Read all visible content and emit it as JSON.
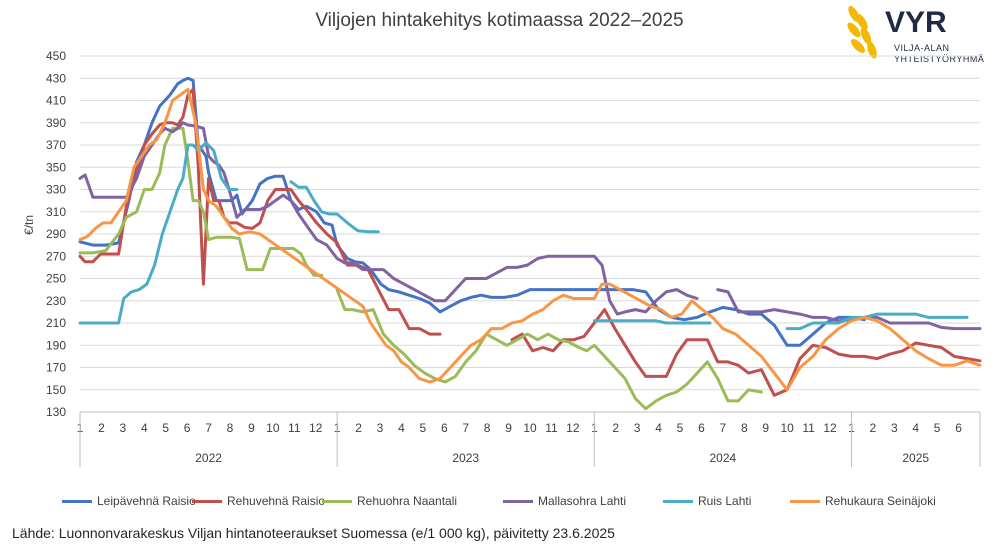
{
  "title": "Viljojen hintakehitys kotimaassa 2022–2025",
  "logo": {
    "name": "VYR",
    "subtitle_line1": "VILJA-ALAN",
    "subtitle_line2": "YHTEISTYÖRYHMÄ"
  },
  "source": "Lähde: Luonnonvarakeskus Viljan hintanoteeraukset Suomessa (e/1 000 kg), päivitetty 23.6.2025",
  "chart_data": {
    "type": "line",
    "title": "Viljojen hintakehitys kotimaassa 2022–2025",
    "ylabel": "€/tn",
    "xlabel": "",
    "ylim": [
      130,
      450
    ],
    "yticks": [
      130,
      150,
      170,
      190,
      210,
      230,
      250,
      270,
      290,
      310,
      330,
      350,
      370,
      390,
      410,
      430,
      450
    ],
    "xlim": [
      2022.0,
      2025.5
    ],
    "years": [
      "2022",
      "2023",
      "2024",
      "2025"
    ],
    "month_ticks": [
      "1",
      "2",
      "3",
      "4",
      "5",
      "6",
      "7",
      "8",
      "9",
      "10",
      "11",
      "12",
      "1",
      "2",
      "3",
      "4",
      "5",
      "6",
      "7",
      "8",
      "9",
      "10",
      "11",
      "12",
      "1",
      "2",
      "3",
      "4",
      "5",
      "6",
      "7",
      "8",
      "9",
      "10",
      "11",
      "12",
      "1",
      "2",
      "3",
      "4",
      "5",
      "6"
    ],
    "grid": "horizontal",
    "legend_position": "bottom",
    "series": [
      {
        "name": "Leipävehnä Raisio",
        "color": "#4472C4",
        "x": [
          2022.0,
          2022.05,
          2022.1,
          2022.15,
          2022.19,
          2022.22,
          2022.25,
          2022.28,
          2022.31,
          2022.33,
          2022.35,
          2022.38,
          2022.4,
          2022.42,
          2022.44,
          2022.46,
          2022.49,
          2022.5,
          2022.53,
          2022.56,
          2022.59,
          2022.61,
          2022.63,
          2022.67,
          2022.7,
          2022.73,
          2022.76,
          2022.79,
          2022.82,
          2022.85,
          2022.88,
          2022.92,
          2022.95,
          2022.98,
          2023.0,
          2023.04,
          2023.07,
          2023.1,
          2023.13,
          2023.17,
          2023.2,
          2023.24,
          2023.28,
          2023.32,
          2023.36,
          2023.4,
          2023.44,
          2023.48,
          2023.52,
          2023.56,
          2023.6,
          2023.65,
          2023.7,
          2023.75,
          2023.8,
          2023.85,
          2023.9,
          2023.95,
          2024.0,
          2024.05,
          2024.1,
          2024.15,
          2024.2,
          2024.25,
          2024.3,
          2024.35,
          2024.4,
          2024.45,
          2024.5,
          2024.55,
          2024.6,
          2024.65,
          2024.7,
          2024.75,
          2024.8,
          2024.85,
          2024.9,
          2024.95,
          2025.0,
          2025.05
        ],
        "y": [
          283,
          280,
          280,
          282,
          320,
          355,
          370,
          390,
          405,
          410,
          415,
          425,
          428,
          430,
          428,
          370,
          360,
          345,
          320,
          320,
          320,
          325,
          308,
          320,
          335,
          340,
          342,
          342,
          320,
          312,
          315,
          310,
          300,
          298,
          280,
          268,
          265,
          264,
          258,
          245,
          240,
          238,
          235,
          232,
          228,
          220,
          225,
          230,
          233,
          235,
          233,
          233,
          235,
          240,
          240,
          240,
          240,
          240,
          240,
          240,
          240,
          240,
          238,
          222,
          215,
          213,
          215,
          220,
          224,
          222,
          218,
          218,
          208,
          190,
          190,
          200,
          210,
          215,
          215,
          213
        ]
      },
      {
        "name": "Rehuvehnä Raisio",
        "color": "#C0504D",
        "x": [
          2022.0,
          2022.02,
          2022.05,
          2022.08,
          2022.12,
          2022.15,
          2022.18,
          2022.22,
          2022.25,
          2022.28,
          2022.31,
          2022.33,
          2022.36,
          2022.38,
          2022.4,
          2022.42,
          2022.44,
          2022.46,
          2022.48,
          2022.5,
          2022.52,
          2022.54,
          2022.56,
          2022.58,
          2022.61,
          2022.64,
          2022.67,
          2022.7,
          2022.73,
          2022.76,
          2022.79,
          2022.82,
          2022.85,
          2022.88,
          2022.92,
          2022.96,
          2023.0,
          2023.04,
          2023.08,
          2023.12,
          2023.16,
          2023.2,
          2023.24,
          2023.28,
          2023.32,
          2023.36,
          2023.4,
          2023.44,
          2023.48,
          2023.52,
          2023.56,
          2023.6,
          2023.64,
          2023.68,
          2023.72,
          2023.76,
          2023.8,
          2023.84,
          2023.88,
          2023.92,
          2023.96,
          2024.0,
          2024.04,
          2024.08,
          2024.12,
          2024.16,
          2024.2,
          2024.24,
          2024.28,
          2024.32,
          2024.36,
          2024.4,
          2024.44,
          2024.48,
          2024.52,
          2024.56,
          2024.6,
          2024.65,
          2024.7,
          2024.75,
          2024.8,
          2024.85,
          2024.9,
          2024.95,
          2025.0,
          2025.05,
          2025.1,
          2025.15,
          2025.2,
          2025.25,
          2025.3,
          2025.35,
          2025.4,
          2025.45,
          2025.5
        ],
        "y": [
          270,
          265,
          265,
          272,
          272,
          272,
          315,
          345,
          370,
          380,
          388,
          390,
          390,
          388,
          395,
          415,
          420,
          350,
          245,
          340,
          320,
          320,
          305,
          300,
          300,
          296,
          295,
          300,
          320,
          330,
          330,
          330,
          320,
          312,
          300,
          290,
          282,
          262,
          262,
          258,
          240,
          222,
          222,
          205,
          205,
          200,
          200,
          null,
          null,
          null,
          null,
          null,
          null,
          195,
          200,
          185,
          188,
          185,
          195,
          195,
          198,
          210,
          222,
          205,
          190,
          175,
          162,
          162,
          162,
          182,
          195,
          195,
          195,
          175,
          175,
          172,
          165,
          168,
          145,
          150,
          178,
          190,
          188,
          182,
          180,
          180,
          178,
          182,
          185,
          192,
          190,
          188,
          180,
          178,
          176
        ]
      },
      {
        "name": "Rehuohra Naantali",
        "color": "#9BBB59",
        "x": [
          2022.0,
          2022.05,
          2022.1,
          2022.15,
          2022.18,
          2022.22,
          2022.25,
          2022.28,
          2022.31,
          2022.33,
          2022.36,
          2022.38,
          2022.4,
          2022.42,
          2022.44,
          2022.46,
          2022.48,
          2022.5,
          2022.53,
          2022.56,
          2022.59,
          2022.62,
          2022.65,
          2022.68,
          2022.71,
          2022.74,
          2022.77,
          2022.8,
          2022.83,
          2022.86,
          2022.88,
          2022.91,
          2022.94,
          2022.97,
          2023.0,
          2023.03,
          2023.06,
          2023.1,
          2023.14,
          2023.18,
          2023.22,
          2023.26,
          2023.3,
          2023.34,
          2023.38,
          2023.42,
          2023.46,
          2023.5,
          2023.54,
          2023.58,
          2023.62,
          2023.66,
          2023.7,
          2023.74,
          2023.78,
          2023.82,
          2023.86,
          2023.9,
          2023.94,
          2023.97,
          2024.0,
          2024.04,
          2024.08,
          2024.12,
          2024.16,
          2024.2,
          2024.24,
          2024.28,
          2024.32,
          2024.36,
          2024.4,
          2024.44,
          2024.48,
          2024.52,
          2024.56,
          2024.6,
          2024.65
        ],
        "y": [
          273,
          273,
          275,
          290,
          305,
          310,
          330,
          330,
          345,
          370,
          385,
          385,
          385,
          355,
          320,
          320,
          310,
          285,
          287,
          287,
          287,
          286,
          258,
          258,
          258,
          277,
          277,
          277,
          277,
          272,
          262,
          253,
          253,
          null,
          240,
          222,
          222,
          220,
          222,
          200,
          190,
          182,
          172,
          165,
          160,
          157,
          162,
          175,
          185,
          200,
          195,
          190,
          195,
          200,
          195,
          200,
          195,
          193,
          188,
          185,
          190,
          180,
          170,
          160,
          142,
          133,
          140,
          145,
          148,
          155,
          165,
          175,
          160,
          140,
          140,
          150,
          148
        ]
      },
      {
        "name": "Mallasohra Lahti",
        "color": "#8064A2",
        "x": [
          2022.0,
          2022.02,
          2022.05,
          2022.1,
          2022.15,
          2022.18,
          2022.22,
          2022.25,
          2022.28,
          2022.31,
          2022.33,
          2022.36,
          2022.38,
          2022.4,
          2022.42,
          2022.45,
          2022.48,
          2022.5,
          2022.52,
          2022.54,
          2022.56,
          2022.58,
          2022.61,
          2022.64,
          2022.67,
          2022.7,
          2022.73,
          2022.76,
          2022.79,
          2022.82,
          2022.85,
          2022.88,
          2022.92,
          2022.96,
          2023.0,
          2023.03,
          2023.06,
          2023.1,
          2023.14,
          2023.18,
          2023.22,
          2023.26,
          2023.3,
          2023.34,
          2023.38,
          2023.42,
          2023.46,
          2023.5,
          2023.54,
          2023.58,
          2023.62,
          2023.66,
          2023.7,
          2023.74,
          2023.78,
          2023.82,
          2023.86,
          2023.9,
          2023.94,
          2023.98,
          2024.0,
          2024.03,
          2024.06,
          2024.09,
          2024.12,
          2024.16,
          2024.2,
          2024.24,
          2024.28,
          2024.32,
          2024.36,
          2024.4,
          2024.44,
          2024.48,
          2024.52,
          2024.56,
          2024.6,
          2024.65,
          2024.7,
          2024.75,
          2024.8,
          2024.85,
          2024.9,
          2024.95,
          2025.0,
          2025.05,
          2025.1,
          2025.15,
          2025.2,
          2025.25,
          2025.3,
          2025.35,
          2025.4,
          2025.45,
          2025.5
        ],
        "y": [
          340,
          343,
          323,
          323,
          323,
          323,
          340,
          360,
          370,
          380,
          385,
          382,
          385,
          390,
          388,
          387,
          385,
          360,
          355,
          352,
          345,
          330,
          305,
          312,
          312,
          312,
          315,
          320,
          325,
          320,
          308,
          298,
          285,
          280,
          268,
          264,
          264,
          258,
          258,
          258,
          250,
          245,
          240,
          235,
          230,
          230,
          240,
          250,
          250,
          250,
          255,
          260,
          260,
          262,
          268,
          270,
          270,
          270,
          270,
          270,
          270,
          262,
          230,
          218,
          220,
          222,
          220,
          230,
          238,
          240,
          235,
          232,
          null,
          240,
          238,
          220,
          220,
          220,
          222,
          220,
          218,
          215,
          215,
          212,
          213,
          215,
          215,
          210,
          210,
          210,
          210,
          206,
          205,
          205,
          205
        ]
      },
      {
        "name": "Ruis Lahti",
        "color": "#4BACC6",
        "x": [
          2022.0,
          2022.05,
          2022.1,
          2022.15,
          2022.17,
          2022.2,
          2022.23,
          2022.26,
          2022.29,
          2022.32,
          2022.35,
          2022.38,
          2022.4,
          2022.42,
          2022.44,
          2022.46,
          2022.49,
          2022.52,
          2022.55,
          2022.58,
          2022.61,
          2022.64,
          2022.67,
          2022.7,
          2022.73,
          2022.76,
          2022.79,
          2022.82,
          2022.85,
          2022.88,
          2022.91,
          2022.94,
          2022.97,
          2023.0,
          2023.04,
          2023.08,
          2023.12,
          2023.16,
          2023.5,
          2023.6,
          2023.7,
          2023.8,
          2023.9,
          2024.0,
          2024.04,
          2024.08,
          2024.12,
          2024.16,
          2024.2,
          2024.24,
          2024.28,
          2024.32,
          2024.36,
          2024.4,
          2024.45,
          2024.5,
          2024.55,
          2024.6,
          2024.65,
          2024.7,
          2024.75,
          2024.8,
          2024.85,
          2024.9,
          2024.95,
          2025.0,
          2025.05,
          2025.1,
          2025.15,
          2025.2,
          2025.25,
          2025.3,
          2025.35,
          2025.4,
          2025.45
        ],
        "y": [
          210,
          210,
          210,
          210,
          232,
          238,
          240,
          245,
          262,
          290,
          310,
          330,
          340,
          370,
          370,
          365,
          372,
          365,
          340,
          330,
          330,
          null,
          null,
          null,
          null,
          null,
          null,
          337,
          332,
          332,
          320,
          310,
          308,
          308,
          300,
          293,
          292,
          292,
          null,
          null,
          null,
          null,
          null,
          212,
          212,
          212,
          212,
          212,
          212,
          212,
          210,
          210,
          210,
          210,
          210,
          null,
          null,
          null,
          null,
          null,
          205,
          205,
          210,
          210,
          210,
          215,
          215,
          218,
          218,
          218,
          218,
          215,
          215,
          215,
          215
        ]
      },
      {
        "name": "Rehukaura Seinäjoki",
        "color": "#F79646",
        "x": [
          2022.0,
          2022.03,
          2022.06,
          2022.09,
          2022.12,
          2022.15,
          2022.18,
          2022.21,
          2022.24,
          2022.27,
          2022.3,
          2022.33,
          2022.36,
          2022.39,
          2022.42,
          2022.45,
          2022.48,
          2022.5,
          2022.53,
          2022.56,
          2022.59,
          2022.62,
          2022.66,
          2022.7,
          2023.1,
          2023.13,
          2023.16,
          2023.19,
          2023.22,
          2023.25,
          2023.28,
          2023.32,
          2023.36,
          2023.4,
          2023.44,
          2023.48,
          2023.52,
          2023.56,
          2023.6,
          2023.64,
          2023.68,
          2023.72,
          2023.76,
          2023.8,
          2023.84,
          2023.88,
          2023.92,
          2023.96,
          2024.0,
          2024.03,
          2024.06,
          2024.1,
          2024.14,
          2024.18,
          2024.22,
          2024.26,
          2024.3,
          2024.34,
          2024.38,
          2024.42,
          2024.46,
          2024.5,
          2024.55,
          2024.6,
          2024.65,
          2024.7,
          2024.75,
          2024.8,
          2024.85,
          2024.9,
          2024.95,
          2025.0,
          2025.05,
          2025.1,
          2025.15,
          2025.2,
          2025.25,
          2025.3,
          2025.35,
          2025.4,
          2025.45,
          2025.5
        ],
        "y": [
          285,
          288,
          295,
          300,
          300,
          310,
          320,
          350,
          360,
          370,
          375,
          390,
          410,
          415,
          420,
          390,
          330,
          320,
          315,
          305,
          295,
          290,
          292,
          290,
          225,
          210,
          200,
          190,
          185,
          175,
          170,
          160,
          157,
          160,
          170,
          180,
          190,
          195,
          205,
          205,
          210,
          212,
          218,
          222,
          230,
          235,
          232,
          232,
          232,
          245,
          245,
          240,
          235,
          230,
          225,
          222,
          215,
          218,
          230,
          222,
          215,
          205,
          200,
          190,
          180,
          165,
          150,
          170,
          180,
          195,
          205,
          212,
          215,
          212,
          205,
          195,
          185,
          178,
          172,
          172,
          176,
          172
        ]
      }
    ]
  }
}
